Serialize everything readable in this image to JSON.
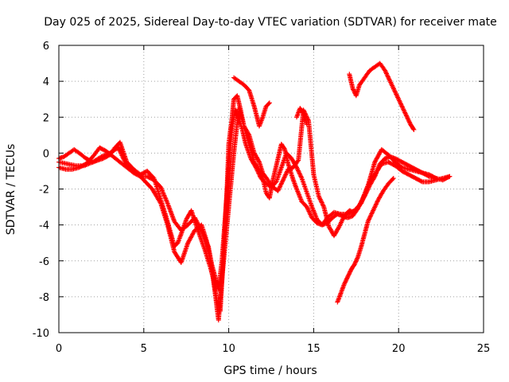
{
  "chart_data": {
    "type": "scatter",
    "title": "Day 025 of 2025, Sidereal Day-to-day VTEC variation (SDTVAR) for receiver mate",
    "xlabel": "GPS time / hours",
    "ylabel": "SDTVAR / TECUs",
    "xlim": [
      0,
      25
    ],
    "ylim": [
      -10,
      6
    ],
    "xticks": [
      0,
      5,
      10,
      15,
      20,
      25
    ],
    "yticks": [
      -10,
      -8,
      -6,
      -4,
      -2,
      0,
      2,
      4,
      6
    ],
    "grid": true,
    "marker": "plus",
    "color": "#ff0000",
    "series": [
      {
        "x": [
          0.0,
          0.3,
          0.6,
          0.9,
          1.2,
          1.6,
          2.0,
          2.3,
          2.6,
          3.0,
          3.3,
          3.6,
          4.0,
          4.4,
          4.8,
          5.2,
          5.6,
          6.0,
          6.3,
          6.6,
          6.8,
          7.0,
          7.2,
          7.5,
          7.8,
          8.0,
          8.3,
          8.6,
          8.9,
          9.1,
          9.3,
          9.5,
          9.7,
          9.9,
          10.0,
          10.2,
          10.3,
          10.5,
          10.7,
          10.9,
          11.2,
          11.5,
          11.8,
          12.0,
          12.2,
          12.4,
          12.6,
          12.9,
          13.1,
          13.3,
          13.5,
          13.8,
          14.0,
          14.3,
          14.6,
          14.9,
          15.2,
          15.5,
          15.8,
          16.2,
          16.6,
          17.0,
          17.4,
          17.8,
          18.2,
          18.6,
          19.0,
          19.4,
          19.8,
          20.2,
          20.6,
          21.0,
          21.4,
          21.8,
          22.2,
          22.6,
          23.0
        ],
        "y": [
          -0.3,
          -0.2,
          0.0,
          0.2,
          0.0,
          -0.3,
          -0.5,
          -0.4,
          -0.3,
          -0.1,
          0.3,
          0.6,
          -0.5,
          -0.9,
          -1.2,
          -1.0,
          -1.4,
          -2.6,
          -3.5,
          -4.5,
          -5.2,
          -5.0,
          -4.5,
          -3.7,
          -3.2,
          -3.8,
          -4.6,
          -5.4,
          -6.3,
          -7.0,
          -8.2,
          -8.8,
          -5.5,
          -2.0,
          0.5,
          2.0,
          3.0,
          3.2,
          2.4,
          1.5,
          0.5,
          -0.5,
          -1.0,
          -1.4,
          -2.2,
          -2.5,
          -1.5,
          -0.3,
          0.5,
          0.2,
          -0.6,
          -1.5,
          -2.0,
          -2.7,
          -3.0,
          -3.6,
          -3.9,
          -4.0,
          -3.6,
          -3.3,
          -3.4,
          -3.4,
          -3.2,
          -2.8,
          -1.8,
          -0.5,
          0.2,
          -0.1,
          -0.5,
          -0.8,
          -0.9,
          -1.0,
          -1.1,
          -1.2,
          -1.4,
          -1.5,
          -1.3
        ]
      },
      {
        "x": [
          0.0,
          0.4,
          0.8,
          1.2,
          1.6,
          2.0,
          2.4,
          2.8,
          3.2,
          3.6,
          4.0,
          4.4,
          4.8,
          5.2,
          5.6,
          6.0,
          6.4,
          6.8,
          7.2,
          7.6,
          8.0,
          8.4,
          8.8,
          9.0,
          9.2,
          9.4,
          9.6,
          9.8,
          10.0,
          10.2,
          10.4,
          10.6,
          10.8,
          11.0,
          11.3,
          11.6,
          11.9,
          12.2,
          12.5,
          12.8,
          13.1,
          13.4,
          13.7,
          14.0,
          14.3,
          14.6,
          14.9,
          15.2,
          15.5,
          15.8,
          16.1,
          16.4,
          16.7,
          17.0,
          17.3,
          17.6,
          17.9,
          18.2,
          18.6,
          19.0,
          19.4,
          19.8,
          20.2,
          20.6,
          21.0,
          21.4,
          21.8,
          22.2,
          22.6,
          23.0
        ],
        "y": [
          -0.8,
          -0.9,
          -0.9,
          -0.8,
          -0.6,
          -0.2,
          0.3,
          0.1,
          -0.2,
          -0.5,
          -0.8,
          -1.1,
          -1.3,
          -1.3,
          -1.5,
          -1.9,
          -2.8,
          -3.8,
          -4.3,
          -4.0,
          -3.6,
          -4.3,
          -5.2,
          -6.2,
          -6.9,
          -7.6,
          -6.0,
          -3.5,
          -0.8,
          1.5,
          2.4,
          1.9,
          1.3,
          0.5,
          -0.3,
          -0.8,
          -1.4,
          -1.7,
          -1.9,
          -1.6,
          -0.8,
          0.0,
          -0.3,
          -0.8,
          -1.4,
          -2.2,
          -3.0,
          -3.7,
          -4.0,
          -3.9,
          -3.6,
          -3.4,
          -3.5,
          -3.6,
          -3.5,
          -3.1,
          -2.5,
          -1.8,
          -1.2,
          -0.6,
          -0.5,
          -0.7,
          -1.0,
          -1.2,
          -1.4,
          -1.6,
          -1.6,
          -1.5,
          -1.4,
          -1.3
        ]
      },
      {
        "x": [
          0.0,
          0.5,
          1.0,
          1.5,
          2.0,
          2.5,
          3.0,
          3.5,
          4.0,
          4.5,
          5.0,
          5.5,
          6.0,
          6.4,
          6.8,
          7.2,
          7.6,
          8.0,
          8.4,
          8.7,
          9.0,
          9.2,
          9.4,
          9.6,
          9.8,
          10.0,
          10.3,
          10.6,
          10.9,
          11.2,
          11.5,
          11.8,
          12.0,
          12.3,
          12.6,
          12.9,
          13.2,
          13.5,
          13.8,
          14.1,
          14.4,
          14.7,
          15.0,
          15.3,
          15.6,
          15.9,
          16.2,
          16.5,
          16.8,
          17.1,
          17.4,
          17.7,
          18.0,
          18.3,
          18.6,
          18.9,
          19.2,
          19.5,
          19.8,
          20.2,
          20.6,
          21.0,
          21.4,
          21.8,
          22.2
        ],
        "y": [
          -0.5,
          -0.6,
          -0.7,
          -0.7,
          -0.5,
          -0.2,
          0.0,
          0.3,
          -0.7,
          -1.0,
          -1.5,
          -2.0,
          -2.8,
          -4.0,
          -5.5,
          -6.1,
          -5.0,
          -4.3,
          -4.0,
          -4.9,
          -6.4,
          -7.8,
          -9.3,
          -7.0,
          -5.0,
          -3.0,
          0.0,
          2.5,
          1.5,
          1.0,
          0.0,
          -0.5,
          -1.1,
          -1.5,
          -1.9,
          -2.1,
          -1.5,
          -0.9,
          -0.8,
          -0.4,
          2.4,
          1.8,
          -1.2,
          -2.4,
          -3.0,
          -4.1,
          -4.6,
          -4.1,
          -3.5,
          -3.2,
          -3.3,
          -2.9,
          -2.4,
          -1.8,
          -1.3,
          -0.6,
          -0.3,
          -0.2,
          -0.3,
          -0.5,
          -0.7,
          -0.9,
          -1.1,
          -1.3,
          -1.4
        ]
      },
      {
        "x": [
          10.3,
          10.6,
          10.9,
          11.2,
          11.5,
          11.8,
          12.0,
          12.2,
          12.4
        ],
        "y": [
          4.2,
          4.0,
          3.8,
          3.5,
          2.6,
          1.5,
          2.0,
          2.6,
          2.8
        ]
      },
      {
        "x": [
          14.0,
          14.2,
          14.4,
          14.6
        ],
        "y": [
          2.0,
          2.5,
          2.2,
          1.6
        ]
      },
      {
        "x": [
          17.1,
          17.3,
          17.5,
          17.7,
          18.0,
          18.3,
          18.6,
          18.9,
          19.2,
          19.5,
          19.8,
          20.1,
          20.4,
          20.7,
          20.9
        ],
        "y": [
          4.4,
          3.6,
          3.2,
          3.8,
          4.2,
          4.6,
          4.8,
          5.0,
          4.6,
          4.0,
          3.4,
          2.8,
          2.2,
          1.6,
          1.3
        ]
      },
      {
        "x": [
          16.4,
          16.6,
          16.8,
          17.0,
          17.2,
          17.4,
          17.6,
          17.8,
          18.0,
          18.2,
          18.5,
          18.8,
          19.1,
          19.4,
          19.7
        ],
        "y": [
          -8.3,
          -7.8,
          -7.3,
          -6.9,
          -6.5,
          -6.2,
          -5.8,
          -5.2,
          -4.5,
          -3.8,
          -3.2,
          -2.6,
          -2.1,
          -1.7,
          -1.4
        ]
      }
    ]
  }
}
